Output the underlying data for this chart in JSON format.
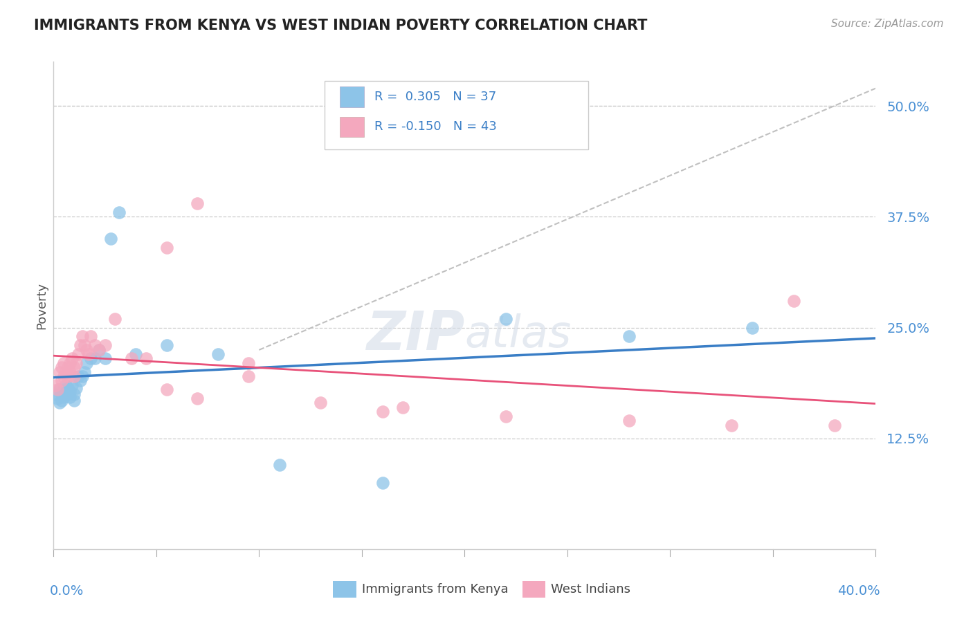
{
  "title": "IMMIGRANTS FROM KENYA VS WEST INDIAN POVERTY CORRELATION CHART",
  "source": "Source: ZipAtlas.com",
  "ylabel": "Poverty",
  "y_ticks": [
    "12.5%",
    "25.0%",
    "37.5%",
    "50.0%"
  ],
  "y_tick_vals": [
    0.125,
    0.25,
    0.375,
    0.5
  ],
  "xlim": [
    0.0,
    0.4
  ],
  "ylim": [
    0.0,
    0.55
  ],
  "watermark_zip": "ZIP",
  "watermark_atlas": "atlas",
  "color_blue": "#8dc4e8",
  "color_pink": "#f4a8be",
  "color_line_blue": "#3a7ec6",
  "color_line_pink": "#e8527a",
  "color_line_dashed": "#c0c0c0",
  "kenya_x": [
    0.001,
    0.002,
    0.003,
    0.003,
    0.004,
    0.004,
    0.005,
    0.005,
    0.006,
    0.006,
    0.007,
    0.007,
    0.008,
    0.008,
    0.009,
    0.01,
    0.01,
    0.011,
    0.012,
    0.013,
    0.014,
    0.015,
    0.016,
    0.018,
    0.02,
    0.022,
    0.025,
    0.028,
    0.032,
    0.04,
    0.055,
    0.08,
    0.11,
    0.16,
    0.22,
    0.28,
    0.34
  ],
  "kenya_y": [
    0.175,
    0.17,
    0.18,
    0.165,
    0.175,
    0.168,
    0.172,
    0.18,
    0.178,
    0.185,
    0.175,
    0.182,
    0.178,
    0.172,
    0.185,
    0.175,
    0.168,
    0.182,
    0.195,
    0.19,
    0.195,
    0.2,
    0.21,
    0.215,
    0.215,
    0.225,
    0.215,
    0.35,
    0.38,
    0.22,
    0.23,
    0.22,
    0.095,
    0.075,
    0.26,
    0.24,
    0.25
  ],
  "wi_x": [
    0.001,
    0.002,
    0.003,
    0.004,
    0.004,
    0.005,
    0.005,
    0.006,
    0.007,
    0.007,
    0.008,
    0.008,
    0.009,
    0.01,
    0.01,
    0.011,
    0.012,
    0.013,
    0.014,
    0.015,
    0.016,
    0.017,
    0.018,
    0.02,
    0.022,
    0.025,
    0.03,
    0.038,
    0.045,
    0.055,
    0.07,
    0.095,
    0.13,
    0.17,
    0.22,
    0.28,
    0.33,
    0.36,
    0.38,
    0.055,
    0.07,
    0.095,
    0.16
  ],
  "wi_y": [
    0.185,
    0.18,
    0.2,
    0.19,
    0.205,
    0.195,
    0.21,
    0.2,
    0.205,
    0.195,
    0.21,
    0.2,
    0.215,
    0.205,
    0.195,
    0.21,
    0.22,
    0.23,
    0.24,
    0.23,
    0.225,
    0.22,
    0.24,
    0.23,
    0.225,
    0.23,
    0.26,
    0.215,
    0.215,
    0.18,
    0.17,
    0.195,
    0.165,
    0.16,
    0.15,
    0.145,
    0.14,
    0.28,
    0.14,
    0.34,
    0.39,
    0.21,
    0.155
  ]
}
